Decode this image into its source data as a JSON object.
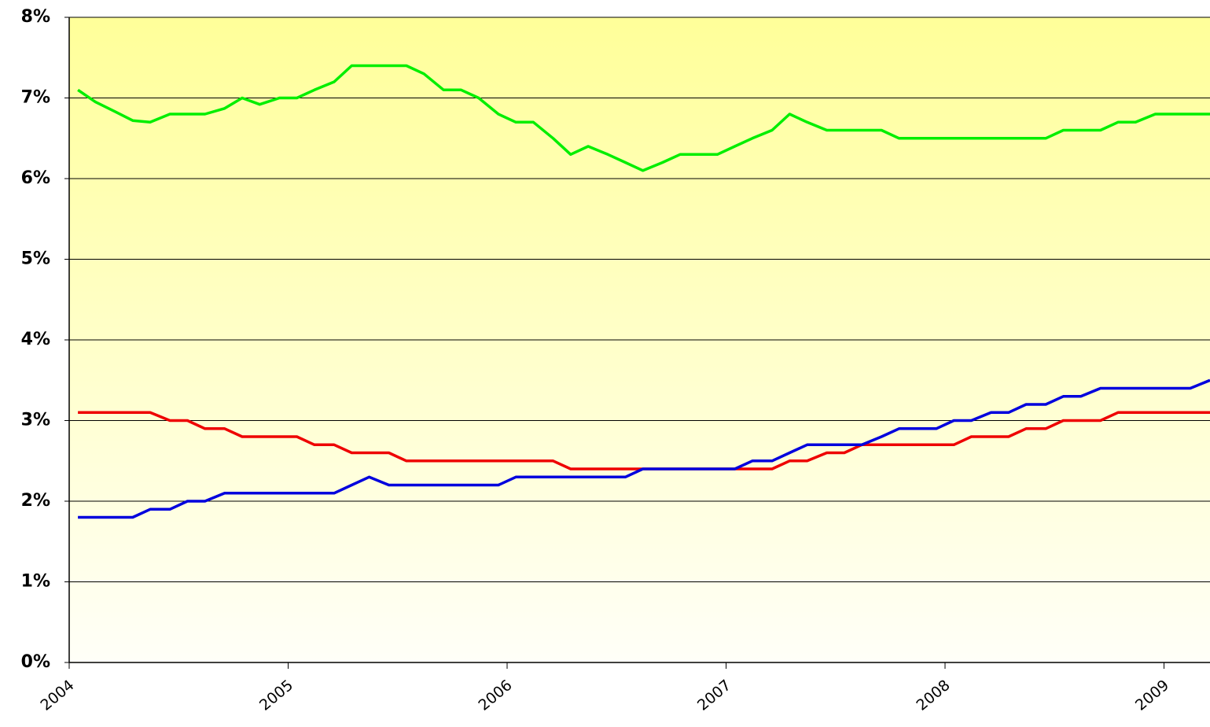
{
  "chart_data": {
    "type": "line",
    "x": [
      2004.04,
      2004.12,
      2004.21,
      2004.29,
      2004.37,
      2004.46,
      2004.54,
      2004.62,
      2004.71,
      2004.79,
      2004.87,
      2004.96,
      2005.04,
      2005.12,
      2005.21,
      2005.29,
      2005.37,
      2005.46,
      2005.54,
      2005.62,
      2005.71,
      2005.79,
      2005.87,
      2005.96,
      2006.04,
      2006.12,
      2006.21,
      2006.29,
      2006.37,
      2006.46,
      2006.54,
      2006.62,
      2006.71,
      2006.79,
      2006.87,
      2006.96,
      2007.04,
      2007.12,
      2007.21,
      2007.29,
      2007.37,
      2007.46,
      2007.54,
      2007.62,
      2007.71,
      2007.79,
      2007.87,
      2007.96,
      2008.04,
      2008.12,
      2008.21,
      2008.29,
      2008.37,
      2008.46,
      2008.54,
      2008.62,
      2008.71,
      2008.79,
      2008.87,
      2008.96,
      2009.04,
      2009.12,
      2009.21
    ],
    "series": [
      {
        "color": "#00ee00",
        "values": [
          7.1,
          6.95,
          6.83,
          6.72,
          6.7,
          6.8,
          6.8,
          6.8,
          6.87,
          7.0,
          6.92,
          7.0,
          7.0,
          7.1,
          7.2,
          7.4,
          7.4,
          7.4,
          7.4,
          7.3,
          7.1,
          7.1,
          7.0,
          6.8,
          6.7,
          6.7,
          6.5,
          6.3,
          6.4,
          6.3,
          6.2,
          6.1,
          6.2,
          6.3,
          6.3,
          6.3,
          6.4,
          6.5,
          6.6,
          6.8,
          6.7,
          6.6,
          6.6,
          6.6,
          6.6,
          6.5,
          6.5,
          6.5,
          6.5,
          6.5,
          6.5,
          6.5,
          6.5,
          6.5,
          6.6,
          6.6,
          6.6,
          6.7,
          6.7,
          6.8,
          6.8,
          6.8,
          6.8
        ]
      },
      {
        "color": "#ee0000",
        "values": [
          3.1,
          3.1,
          3.1,
          3.1,
          3.1,
          3.0,
          3.0,
          2.9,
          2.9,
          2.8,
          2.8,
          2.8,
          2.8,
          2.7,
          2.7,
          2.6,
          2.6,
          2.6,
          2.5,
          2.5,
          2.5,
          2.5,
          2.5,
          2.5,
          2.5,
          2.5,
          2.5,
          2.4,
          2.4,
          2.4,
          2.4,
          2.4,
          2.4,
          2.4,
          2.4,
          2.4,
          2.4,
          2.4,
          2.4,
          2.5,
          2.5,
          2.6,
          2.6,
          2.7,
          2.7,
          2.7,
          2.7,
          2.7,
          2.7,
          2.8,
          2.8,
          2.8,
          2.9,
          2.9,
          3.0,
          3.0,
          3.0,
          3.1,
          3.1,
          3.1,
          3.1,
          3.1,
          3.1
        ]
      },
      {
        "color": "#0000dd",
        "values": [
          1.8,
          1.8,
          1.8,
          1.8,
          1.9,
          1.9,
          2.0,
          2.0,
          2.1,
          2.1,
          2.1,
          2.1,
          2.1,
          2.1,
          2.1,
          2.2,
          2.3,
          2.2,
          2.2,
          2.2,
          2.2,
          2.2,
          2.2,
          2.2,
          2.3,
          2.3,
          2.3,
          2.3,
          2.3,
          2.3,
          2.3,
          2.4,
          2.4,
          2.4,
          2.4,
          2.4,
          2.4,
          2.5,
          2.5,
          2.6,
          2.7,
          2.7,
          2.7,
          2.7,
          2.8,
          2.9,
          2.9,
          2.9,
          3.0,
          3.0,
          3.1,
          3.1,
          3.2,
          3.2,
          3.3,
          3.3,
          3.4,
          3.4,
          3.4,
          3.4,
          3.4,
          3.4,
          3.5
        ]
      }
    ],
    "xlim": [
      2004,
      2009.21
    ],
    "xticks": [
      2004,
      2005,
      2006,
      2007,
      2008,
      2009
    ],
    "ylim": [
      0,
      8
    ],
    "yticks": [
      {
        "value": 0,
        "label": "0%"
      },
      {
        "value": 1,
        "label": "1%"
      },
      {
        "value": 2,
        "label": "2%"
      },
      {
        "value": 3,
        "label": "3%"
      },
      {
        "value": 4,
        "label": "4%"
      },
      {
        "value": 5,
        "label": "5%"
      },
      {
        "value": 6,
        "label": "6%"
      },
      {
        "value": 7,
        "label": "7%"
      },
      {
        "value": 8,
        "label": "8%"
      }
    ],
    "grid": true
  }
}
